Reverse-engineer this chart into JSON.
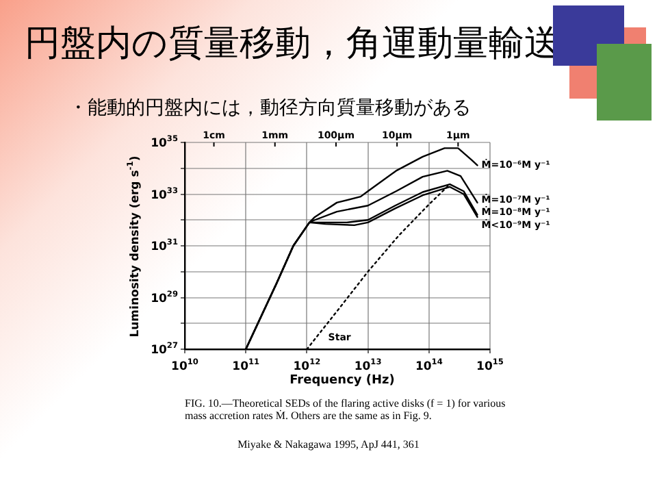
{
  "chart_data": {
    "type": "line",
    "title": "円盤内の質量移動，角運動量輸送",
    "subtitle": "・能動的円盤内には，動径方向質量移動がある",
    "xlabel": "Frequency (Hz)",
    "ylabel": "Luminosity density (erg s$^{-1}$)",
    "log": "xy",
    "grid": true,
    "legend": false,
    "marker": "none",
    "line_style": "solid",
    "xlim": [
      10000000000.0,
      1000000000000000.0
    ],
    "xticks": [
      {
        "value": 10000000000.0,
        "label": "10$^{10}$"
      },
      {
        "value": 100000000000.0,
        "label": "10$^{11}$"
      },
      {
        "value": 1000000000000.0,
        "label": "10$^{12}$"
      },
      {
        "value": 10000000000000.0,
        "label": "10$^{13}$"
      },
      {
        "value": 100000000000000.0,
        "label": "10$^{14}$"
      },
      {
        "value": 1000000000000000.0,
        "label": "10$^{15}$"
      }
    ],
    "ylim": [
      1e+27,
      1e+35
    ],
    "yticks": [
      {
        "value": 1e+27,
        "label": "10$^{27}$"
      },
      {
        "value": 1e+28,
        "label": null
      },
      {
        "value": 1e+29,
        "label": "10$^{29}$"
      },
      {
        "value": 1e+30,
        "label": null
      },
      {
        "value": 1e+31,
        "label": "10$^{31}$"
      },
      {
        "value": 1e+32,
        "label": null
      },
      {
        "value": 1e+33,
        "label": "10$^{33}$"
      },
      {
        "value": 1e+34,
        "label": null
      },
      {
        "value": 1e+35,
        "label": "10$^{35}$"
      }
    ],
    "series": [
      {
        "name": "Ṁ=10⁻⁶M y⁻¹",
        "color": "#000000",
        "x": [
          100000000000.0,
          320000000000.0,
          600000000000.0,
          1100000000000.0,
          1350000000000.0,
          3100000000000.0,
          7600000000000.0,
          10000000000000.0,
          29000000000000.0,
          79000000000000.0,
          180000000000000.0,
          300000000000000.0,
          500000000000000.0,
          620000000000000.0
        ],
        "values": [
          1e+27,
          3.6e+29,
          1e+31,
          8e+31,
          1.3e+32,
          4.7e+32,
          8e+32,
          1.3e+33,
          8e+33,
          2.8e+34,
          6e+34,
          6e+34,
          2.1e+34,
          1.3e+34
        ]
      },
      {
        "name": "Ṁ=10⁻⁷M y⁻¹",
        "color": "#000000",
        "x": [
          100000000000.0,
          320000000000.0,
          600000000000.0,
          1100000000000.0,
          1350000000000.0,
          3100000000000.0,
          10000000000000.0,
          29000000000000.0,
          79000000000000.0,
          200000000000000.0,
          330000000000000.0,
          620000000000000.0
        ],
        "values": [
          1e+27,
          3.6e+29,
          1e+31,
          8e+31,
          1e+32,
          2.1e+32,
          3.6e+32,
          1.3e+33,
          4.7e+33,
          8e+33,
          5e+33,
          4.7e+32
        ]
      },
      {
        "name": "Ṁ=10⁻⁸M y⁻¹",
        "color": "#000000",
        "x": [
          100000000000.0,
          320000000000.0,
          600000000000.0,
          1100000000000.0,
          2000000000000.0,
          4500000000000.0,
          10000000000000.0,
          28000000000000.0,
          79000000000000.0,
          220000000000000.0,
          370000000000000.0,
          620000000000000.0
        ],
        "values": [
          1e+27,
          3.6e+29,
          1e+31,
          8e+31,
          8e+31,
          8e+31,
          1e+32,
          3.6e+32,
          1.2e+33,
          2.4e+33,
          1.3e+33,
          1.6e+32
        ]
      },
      {
        "name": "Ṁ<10⁻⁹M y⁻¹",
        "color": "#000000",
        "x": [
          100000000000.0,
          320000000000.0,
          600000000000.0,
          1100000000000.0,
          2000000000000.0,
          6000000000000.0,
          10000000000000.0,
          28000000000000.0,
          79000000000000.0,
          220000000000000.0,
          370000000000000.0,
          620000000000000.0
        ],
        "values": [
          1e+27,
          3.6e+29,
          1e+31,
          8e+31,
          7e+31,
          6.3e+31,
          8e+31,
          2.8e+32,
          9e+32,
          1.9e+33,
          1e+33,
          1.3e+32
        ]
      },
      {
        "name": "Star",
        "color": "#000000",
        "line_style": "dotted",
        "x": [
          1000000000000.0,
          3200000000000.0,
          10000000000000.0,
          32000000000000.0,
          100000000000000.0,
          220000000000000.0
        ],
        "values": [
          1e+27,
          3.2e+28,
          1e+30,
          2.5e+31,
          4e+32,
          2.4e+33
        ]
      }
    ],
    "annotations": [
      "FIG. 10.—Theoretical SEDs of the flaring active disks (f = 1) for various mass accretion rates Ṁ. Others are the same as in Fig. 9.",
      "Miyake & Nakagawa 1995, ApJ 441, 361",
      "1cm",
      "1mm",
      "100μm",
      "10μm",
      "1μm"
    ]
  }
}
